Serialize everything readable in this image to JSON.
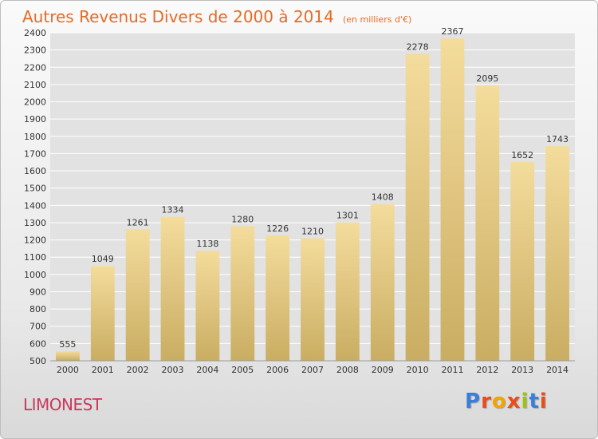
{
  "header": {
    "title": "Autres Revenus Divers de 2000 à 2014",
    "subtitle": "(en milliers d'€)"
  },
  "footer": {
    "town": "LIMONEST",
    "logo_text": "Proxiti",
    "logo_colors": [
      "#3a7fd5",
      "#e84e1b",
      "#f0a500",
      "#e84e1b",
      "#9ac31c",
      "#3a7fd5",
      "#e84e1b"
    ]
  },
  "chart_data": {
    "type": "bar",
    "categories": [
      "2000",
      "2001",
      "2002",
      "2003",
      "2004",
      "2005",
      "2006",
      "2007",
      "2008",
      "2009",
      "2010",
      "2011",
      "2012",
      "2013",
      "2014"
    ],
    "values": [
      555,
      1049,
      1261,
      1334,
      1138,
      1280,
      1226,
      1210,
      1301,
      1408,
      2278,
      2367,
      2095,
      1652,
      1743
    ],
    "ylim": [
      500,
      2400
    ],
    "yticks": [
      500,
      600,
      700,
      800,
      900,
      1000,
      1100,
      1200,
      1300,
      1400,
      1500,
      1600,
      1700,
      1800,
      1900,
      2000,
      2100,
      2200,
      2300,
      2400
    ],
    "grid": true,
    "data_labels": true,
    "colors": {
      "bar_top": "#f4dc9c",
      "bar_bottom": "#c9ad62",
      "plot_bg": "#e2e2e2",
      "grid": "#ffffff",
      "text": "#333333",
      "title": "#e36c26",
      "town": "#c8385c"
    }
  }
}
